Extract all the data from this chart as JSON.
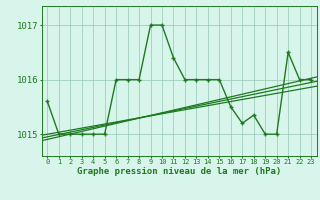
{
  "hours": [
    0,
    1,
    2,
    3,
    4,
    5,
    6,
    7,
    8,
    9,
    10,
    11,
    12,
    13,
    14,
    15,
    16,
    17,
    18,
    19,
    20,
    21,
    22,
    23
  ],
  "pressure": [
    1015.6,
    1015.0,
    1015.0,
    1015.0,
    1015.0,
    1015.0,
    1016.0,
    1016.0,
    1016.0,
    1017.0,
    1017.0,
    1016.4,
    1016.0,
    1016.0,
    1016.0,
    1016.0,
    1015.5,
    1015.2,
    1015.35,
    1015.0,
    1015.0,
    1016.5,
    1016.0,
    1016.0
  ],
  "trend_lines": [
    [
      1014.88,
      1016.05
    ],
    [
      1014.93,
      1015.97
    ],
    [
      1014.98,
      1015.88
    ]
  ],
  "line_color": "#1e7a1e",
  "bg_color": "#d8f5ec",
  "grid_color": "#a0cfc0",
  "title": "Graphe pression niveau de la mer (hPa)",
  "ylim": [
    1014.6,
    1017.35
  ],
  "yticks": [
    1015,
    1016,
    1017
  ],
  "xlim": [
    -0.5,
    23.5
  ],
  "xticks": [
    0,
    1,
    2,
    3,
    4,
    5,
    6,
    7,
    8,
    9,
    10,
    11,
    12,
    13,
    14,
    15,
    16,
    17,
    18,
    19,
    20,
    21,
    22,
    23
  ]
}
